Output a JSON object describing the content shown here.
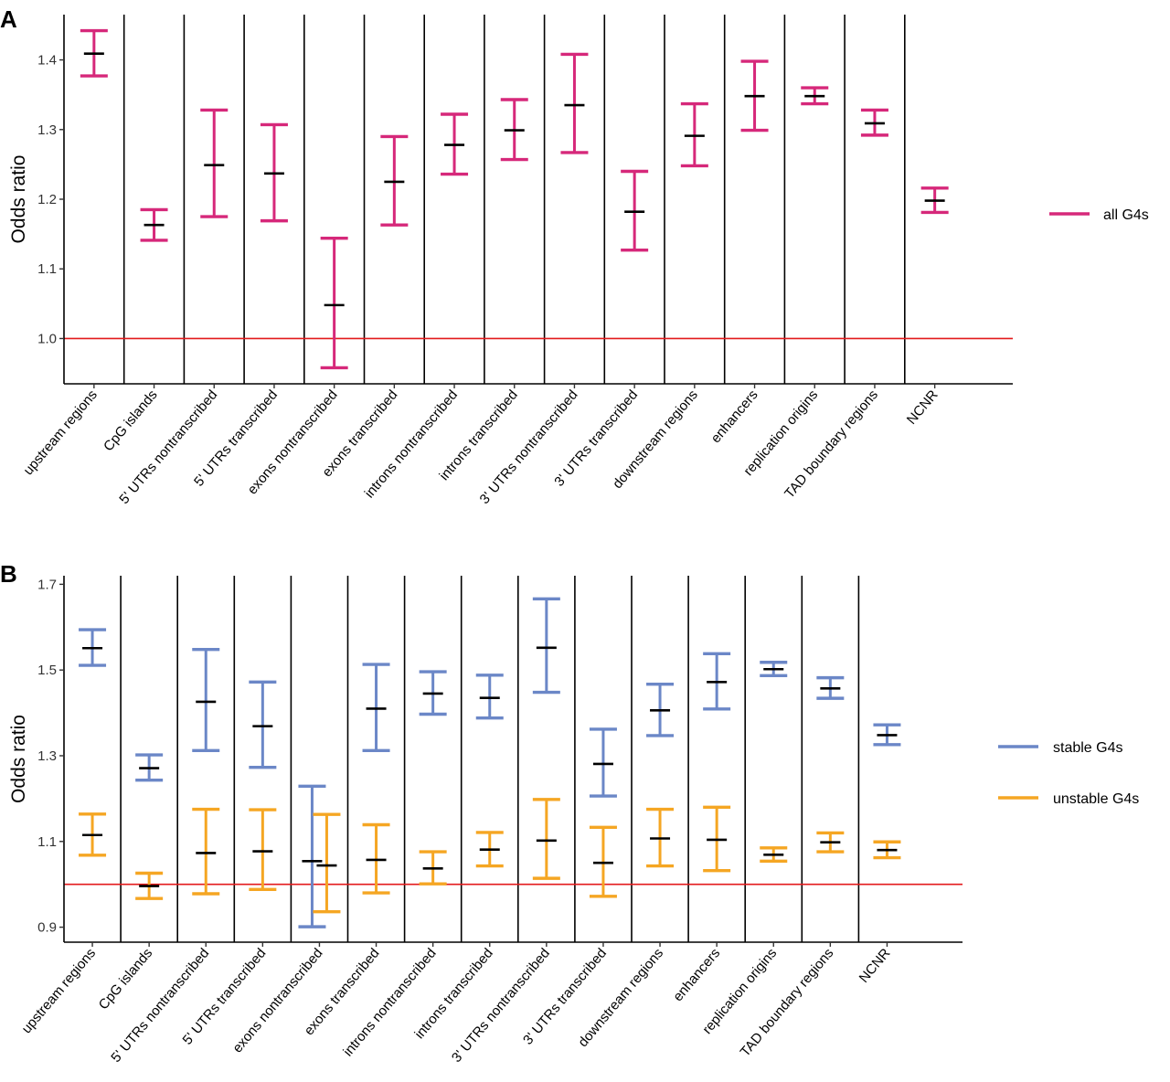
{
  "chart_data": [
    {
      "panel": "A",
      "type": "errorbar",
      "ylabel": "Odds ratio",
      "xlabel": "",
      "ylim": [
        0.935,
        1.465
      ],
      "yticks": [
        1.0,
        1.1,
        1.2,
        1.3,
        1.4
      ],
      "reference_line": 1.0,
      "categories": [
        "upstream regions",
        "CpG islands",
        "5' UTRs nontranscribed",
        "5' UTRs transcribed",
        "exons nontranscribed",
        "exons transcribed",
        "introns nontranscribed",
        "introns transcribed",
        "3' UTRs nontranscribed",
        "3' UTRs transcribed",
        "downstream regions",
        "enhancers",
        "replication origins",
        "TAD boundary regions",
        "NCNR"
      ],
      "series": [
        {
          "name": "all G4s",
          "color": "#d6287a",
          "estimate": [
            1.409,
            1.163,
            1.249,
            1.237,
            1.048,
            1.225,
            1.278,
            1.299,
            1.335,
            1.182,
            1.291,
            1.348,
            1.348,
            1.309,
            1.198
          ],
          "lower": [
            1.377,
            1.141,
            1.175,
            1.169,
            0.958,
            1.163,
            1.236,
            1.257,
            1.267,
            1.127,
            1.248,
            1.299,
            1.337,
            1.292,
            1.181
          ],
          "upper": [
            1.442,
            1.185,
            1.328,
            1.307,
            1.144,
            1.29,
            1.322,
            1.343,
            1.408,
            1.24,
            1.337,
            1.398,
            1.36,
            1.328,
            1.216
          ]
        }
      ],
      "legend": [
        "all G4s"
      ]
    },
    {
      "panel": "B",
      "type": "errorbar",
      "ylabel": "Odds ratio",
      "xlabel": "",
      "ylim": [
        0.865,
        1.72
      ],
      "yticks": [
        0.9,
        1.1,
        1.3,
        1.5,
        1.7
      ],
      "reference_line": 1.0,
      "categories": [
        "upstream regions",
        "CpG islands",
        "5' UTRs nontranscribed",
        "5' UTRs transcribed",
        "exons nontranscribed",
        "exons transcribed",
        "introns nontranscribed",
        "introns transcribed",
        "3' UTRs nontranscribed",
        "3' UTRs transcribed",
        "downstream regions",
        "enhancers",
        "replication origins",
        "TAD boundary regions",
        "NCNR"
      ],
      "series": [
        {
          "name": "stable G4s",
          "color": "#6b87c7",
          "estimate": [
            1.551,
            1.271,
            1.426,
            1.369,
            1.054,
            1.41,
            1.445,
            1.435,
            1.552,
            1.281,
            1.406,
            1.472,
            1.502,
            1.457,
            1.348
          ],
          "lower": [
            1.511,
            1.243,
            1.312,
            1.273,
            0.901,
            1.312,
            1.397,
            1.388,
            1.448,
            1.206,
            1.347,
            1.409,
            1.487,
            1.434,
            1.326
          ],
          "upper": [
            1.594,
            1.302,
            1.548,
            1.472,
            1.229,
            1.513,
            1.496,
            1.488,
            1.666,
            1.362,
            1.467,
            1.538,
            1.518,
            1.482,
            1.372
          ]
        },
        {
          "name": "unstable G4s",
          "color": "#f5a623",
          "estimate": [
            1.115,
            0.996,
            1.073,
            1.077,
            1.044,
            1.057,
            1.037,
            1.081,
            1.102,
            1.05,
            1.107,
            1.104,
            1.069,
            1.098,
            1.08
          ],
          "lower": [
            1.068,
            0.967,
            0.978,
            0.988,
            0.936,
            0.98,
            1.001,
            1.043,
            1.014,
            0.972,
            1.043,
            1.032,
            1.054,
            1.076,
            1.062
          ],
          "upper": [
            1.164,
            1.026,
            1.175,
            1.174,
            1.163,
            1.139,
            1.076,
            1.121,
            1.198,
            1.133,
            1.175,
            1.18,
            1.085,
            1.12,
            1.099
          ]
        }
      ],
      "legend": [
        "stable G4s",
        "unstable G4s"
      ]
    }
  ]
}
